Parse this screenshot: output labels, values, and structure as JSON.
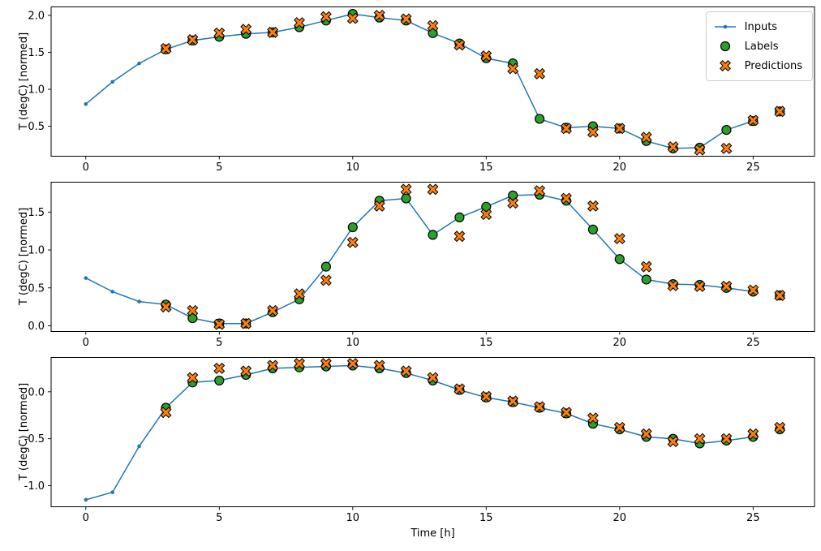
{
  "figure": {
    "xlabel": "Time [h]",
    "legend": [
      {
        "name": "Inputs"
      },
      {
        "name": "Labels"
      },
      {
        "name": "Predictions"
      }
    ],
    "colors": {
      "inputs": "#1f77b4",
      "labels": "#2ca02c",
      "predictions": "#ff7f0e",
      "marker_edge": "#000000"
    }
  },
  "chart_data": [
    {
      "type": "line",
      "ylabel": "T (degC) [normed]",
      "xlim": [
        -1.3,
        27.3
      ],
      "ylim": [
        0.1,
        2.12
      ],
      "xticks": [
        0,
        5,
        10,
        15,
        20,
        25
      ],
      "yticks": [
        0.5,
        1.0,
        1.5,
        2.0
      ],
      "series": {
        "inputs": {
          "label": "Inputs",
          "x": [
            0,
            1,
            2,
            3,
            4,
            5,
            6,
            7,
            8,
            9,
            10,
            11,
            12,
            13,
            14,
            15,
            16,
            17,
            18,
            19,
            20,
            21,
            22,
            23,
            24,
            25
          ],
          "y": [
            0.8,
            1.1,
            1.35,
            1.54,
            1.66,
            1.71,
            1.75,
            1.77,
            1.84,
            1.93,
            2.02,
            1.97,
            1.93,
            1.76,
            1.62,
            1.42,
            1.35,
            0.6,
            0.48,
            0.5,
            0.47,
            0.3,
            0.2,
            0.21,
            0.45,
            0.57
          ]
        },
        "labels": {
          "label": "Labels",
          "x": [
            3,
            4,
            5,
            6,
            7,
            8,
            9,
            10,
            11,
            12,
            13,
            14,
            15,
            16,
            17,
            18,
            19,
            20,
            21,
            22,
            23,
            24,
            25,
            26
          ],
          "y": [
            1.54,
            1.66,
            1.71,
            1.75,
            1.77,
            1.84,
            1.93,
            2.02,
            1.97,
            1.93,
            1.76,
            1.62,
            1.42,
            1.35,
            0.6,
            0.48,
            0.5,
            0.47,
            0.3,
            0.2,
            0.21,
            0.45,
            0.57,
            0.7
          ]
        },
        "predictions": {
          "label": "Predictions",
          "x": [
            3,
            4,
            5,
            6,
            7,
            8,
            9,
            10,
            11,
            12,
            13,
            14,
            15,
            16,
            17,
            18,
            19,
            20,
            21,
            22,
            23,
            24,
            25,
            26
          ],
          "y": [
            1.55,
            1.67,
            1.76,
            1.81,
            1.77,
            1.9,
            1.98,
            1.96,
            2.0,
            1.95,
            1.86,
            1.6,
            1.45,
            1.28,
            1.21,
            0.47,
            0.42,
            0.47,
            0.35,
            0.22,
            0.18,
            0.2,
            0.58,
            0.7
          ]
        }
      }
    },
    {
      "type": "line",
      "ylabel": "T (degC) [normed]",
      "xlim": [
        -1.3,
        27.3
      ],
      "ylim": [
        -0.07,
        1.9
      ],
      "xticks": [
        0,
        5,
        10,
        15,
        20,
        25
      ],
      "yticks": [
        0.0,
        0.5,
        1.0,
        1.5
      ],
      "series": {
        "inputs": {
          "label": "Inputs",
          "x": [
            0,
            1,
            2,
            3,
            4,
            5,
            6,
            7,
            8,
            9,
            10,
            11,
            12,
            13,
            14,
            15,
            16,
            17,
            18,
            19,
            20,
            21,
            22,
            23,
            24,
            25
          ],
          "y": [
            0.63,
            0.45,
            0.32,
            0.28,
            0.1,
            0.03,
            0.03,
            0.18,
            0.35,
            0.78,
            1.3,
            1.65,
            1.68,
            1.2,
            1.43,
            1.57,
            1.72,
            1.73,
            1.65,
            1.27,
            0.88,
            0.61,
            0.55,
            0.54,
            0.5,
            0.45
          ]
        },
        "labels": {
          "label": "Labels",
          "x": [
            3,
            4,
            5,
            6,
            7,
            8,
            9,
            10,
            11,
            12,
            13,
            14,
            15,
            16,
            17,
            18,
            19,
            20,
            21,
            22,
            23,
            24,
            25,
            26
          ],
          "y": [
            0.28,
            0.1,
            0.03,
            0.03,
            0.18,
            0.35,
            0.78,
            1.3,
            1.65,
            1.68,
            1.2,
            1.43,
            1.57,
            1.72,
            1.73,
            1.65,
            1.27,
            0.88,
            0.61,
            0.55,
            0.54,
            0.5,
            0.45,
            0.4
          ]
        },
        "predictions": {
          "label": "Predictions",
          "x": [
            3,
            4,
            5,
            6,
            7,
            8,
            9,
            10,
            11,
            12,
            13,
            14,
            15,
            16,
            17,
            18,
            19,
            20,
            21,
            22,
            23,
            24,
            25,
            26
          ],
          "y": [
            0.25,
            0.2,
            0.02,
            0.03,
            0.2,
            0.42,
            0.6,
            1.1,
            1.58,
            1.8,
            1.8,
            1.18,
            1.47,
            1.62,
            1.78,
            1.68,
            1.58,
            1.15,
            0.78,
            0.53,
            0.52,
            0.52,
            0.47,
            0.4
          ]
        }
      }
    },
    {
      "type": "line",
      "ylabel": "T (degC) [normed]",
      "xlim": [
        -1.3,
        27.3
      ],
      "ylim": [
        -1.22,
        0.37
      ],
      "xticks": [
        0,
        5,
        10,
        15,
        20,
        25
      ],
      "yticks": [
        -1.0,
        -0.5,
        0.0
      ],
      "series": {
        "inputs": {
          "label": "Inputs",
          "x": [
            0,
            1,
            2,
            3,
            4,
            5,
            6,
            7,
            8,
            9,
            10,
            11,
            12,
            13,
            14,
            15,
            16,
            17,
            18,
            19,
            20,
            21,
            22,
            23,
            24,
            25
          ],
          "y": [
            -1.15,
            -1.07,
            -0.58,
            -0.17,
            0.1,
            0.12,
            0.18,
            0.25,
            0.26,
            0.27,
            0.28,
            0.25,
            0.2,
            0.12,
            0.02,
            -0.06,
            -0.11,
            -0.17,
            -0.23,
            -0.34,
            -0.4,
            -0.48,
            -0.5,
            -0.55,
            -0.52,
            -0.48
          ]
        },
        "labels": {
          "label": "Labels",
          "x": [
            3,
            4,
            5,
            6,
            7,
            8,
            9,
            10,
            11,
            12,
            13,
            14,
            15,
            16,
            17,
            18,
            19,
            20,
            21,
            22,
            23,
            24,
            25,
            26
          ],
          "y": [
            -0.17,
            0.1,
            0.12,
            0.18,
            0.25,
            0.26,
            0.27,
            0.28,
            0.25,
            0.2,
            0.12,
            0.02,
            -0.06,
            -0.11,
            -0.17,
            -0.23,
            -0.34,
            -0.4,
            -0.48,
            -0.5,
            -0.55,
            -0.52,
            -0.48,
            -0.4
          ]
        },
        "predictions": {
          "label": "Predictions",
          "x": [
            3,
            4,
            5,
            6,
            7,
            8,
            9,
            10,
            11,
            12,
            13,
            14,
            15,
            16,
            17,
            18,
            19,
            20,
            21,
            22,
            23,
            24,
            25,
            26
          ],
          "y": [
            -0.22,
            0.15,
            0.25,
            0.22,
            0.28,
            0.3,
            0.3,
            0.3,
            0.28,
            0.22,
            0.15,
            0.03,
            -0.05,
            -0.1,
            -0.16,
            -0.22,
            -0.28,
            -0.38,
            -0.45,
            -0.53,
            -0.5,
            -0.5,
            -0.45,
            -0.38
          ]
        }
      }
    }
  ]
}
